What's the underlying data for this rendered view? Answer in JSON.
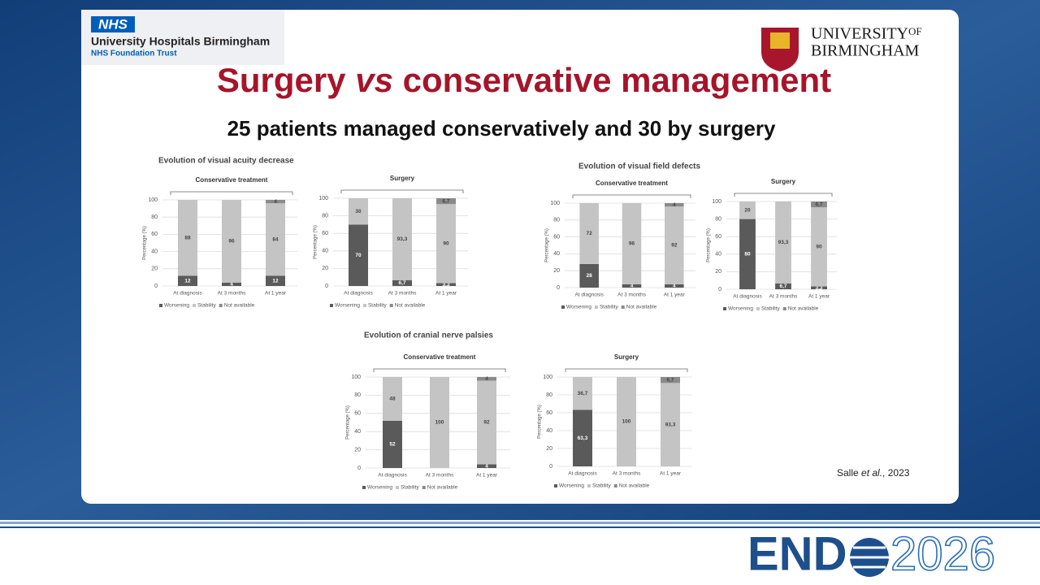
{
  "header": {
    "nhs": "NHS",
    "trust_name": "University Hospitals Birmingham",
    "trust_sub": "NHS Foundation Trust",
    "uni_line1": "UNIVERSITY",
    "uni_of": "OF",
    "uni_line2": "BIRMINGHAM"
  },
  "title": {
    "parts": [
      "Surgery ",
      "vs",
      " conservative management"
    ]
  },
  "subtitle": "25 patients managed conservatively and 30 by surgery",
  "sections": [
    "Evolution of visual acuity decrease",
    "Evolution of visual field defects",
    "Evolution of cranial nerve palsies"
  ],
  "citation": {
    "parts": [
      "Salle ",
      "et al.",
      ", 2023"
    ]
  },
  "footer": {
    "brand_left": "END",
    "brand_right": "2026"
  },
  "chart_data": [
    {
      "type": "stacked_bar",
      "title": "Conservative treatment",
      "ylabel": "Percentage (%)",
      "categories": [
        "At diagnosis",
        "At 3 months",
        "At 1 year"
      ],
      "ylim": [
        0,
        100
      ],
      "yticks": [
        0,
        20,
        40,
        60,
        80,
        100
      ],
      "grid": true,
      "series": [
        {
          "name": "Worsening",
          "color": "#5a5a5a",
          "values": [
            12,
            4,
            12
          ]
        },
        {
          "name": "Stability",
          "color": "#c4c4c4",
          "values": [
            88,
            96,
            84
          ]
        },
        {
          "name": "Not available",
          "color": "#8a8a8a",
          "values": [
            0,
            0,
            4
          ]
        }
      ]
    },
    {
      "type": "stacked_bar",
      "title": "Surgery",
      "ylabel": "Percentage (%)",
      "categories": [
        "At diagnosis",
        "At 3 months",
        "At 1 year"
      ],
      "ylim": [
        0,
        100
      ],
      "yticks": [
        0,
        20,
        40,
        60,
        80,
        100
      ],
      "grid": true,
      "series": [
        {
          "name": "Worsening",
          "color": "#5a5a5a",
          "values": [
            70,
            6.7,
            3.3
          ],
          "value_labels": [
            "70",
            "6,7",
            "3,3"
          ]
        },
        {
          "name": "Stability",
          "color": "#c4c4c4",
          "values": [
            30,
            93.3,
            90
          ],
          "value_labels": [
            "30",
            "93,3",
            "90"
          ]
        },
        {
          "name": "Not available",
          "color": "#8a8a8a",
          "values": [
            0,
            0,
            6.7
          ],
          "value_labels": [
            null,
            null,
            "6,7"
          ]
        }
      ]
    },
    {
      "type": "stacked_bar",
      "title": "Conservative treatment",
      "ylabel": "Percentage (%)",
      "categories": [
        "At diagnosis",
        "At 3 months",
        "At 1 year"
      ],
      "ylim": [
        0,
        100
      ],
      "yticks": [
        0,
        20,
        40,
        60,
        80,
        100
      ],
      "grid": true,
      "series": [
        {
          "name": "Worsening",
          "color": "#5a5a5a",
          "values": [
            28,
            4,
            4
          ]
        },
        {
          "name": "Stability",
          "color": "#c4c4c4",
          "values": [
            72,
            96,
            92
          ]
        },
        {
          "name": "Not available",
          "color": "#8a8a8a",
          "values": [
            0,
            0,
            4
          ]
        }
      ]
    },
    {
      "type": "stacked_bar",
      "title": "Surgery",
      "ylabel": "Percentage (%)",
      "categories": [
        "At diagnosis",
        "At 3 months",
        "At 1 year"
      ],
      "ylim": [
        0,
        100
      ],
      "yticks": [
        0,
        20,
        40,
        60,
        80,
        100
      ],
      "grid": true,
      "series": [
        {
          "name": "Worsening",
          "color": "#5a5a5a",
          "values": [
            80,
            6.7,
            3.3
          ],
          "value_labels": [
            "80",
            "6,7",
            "3,3"
          ]
        },
        {
          "name": "Stability",
          "color": "#c4c4c4",
          "values": [
            20,
            93.3,
            90
          ],
          "value_labels": [
            "20",
            "93,3",
            "90"
          ]
        },
        {
          "name": "Not available",
          "color": "#8a8a8a",
          "values": [
            0,
            0,
            6.7
          ],
          "value_labels": [
            null,
            null,
            "6,7"
          ]
        }
      ]
    },
    {
      "type": "stacked_bar",
      "title": "Conservative treatment",
      "ylabel": "Percentage (%)",
      "categories": [
        "At diagnosis",
        "At 3 months",
        "At 1 year"
      ],
      "ylim": [
        0,
        100
      ],
      "yticks": [
        0,
        20,
        40,
        60,
        80,
        100
      ],
      "grid": true,
      "series": [
        {
          "name": "Worsening",
          "color": "#5a5a5a",
          "values": [
            52,
            0,
            4
          ]
        },
        {
          "name": "Stability",
          "color": "#c4c4c4",
          "values": [
            48,
            100,
            92
          ]
        },
        {
          "name": "Not available",
          "color": "#8a8a8a",
          "values": [
            0,
            0,
            4
          ]
        }
      ]
    },
    {
      "type": "stacked_bar",
      "title": "Surgery",
      "ylabel": "Percentage (%)",
      "categories": [
        "At diagnosis",
        "At 3 months",
        "At 1 year"
      ],
      "ylim": [
        0,
        100
      ],
      "yticks": [
        0,
        20,
        40,
        60,
        80,
        100
      ],
      "grid": true,
      "series": [
        {
          "name": "Worsening",
          "color": "#5a5a5a",
          "values": [
            63.3,
            0,
            0
          ],
          "value_labels": [
            "63,3",
            null,
            null
          ]
        },
        {
          "name": "Stability",
          "color": "#c4c4c4",
          "values": [
            36.7,
            100,
            93.3
          ],
          "value_labels": [
            "36,7",
            "100",
            "93,3"
          ]
        },
        {
          "name": "Not available",
          "color": "#8a8a8a",
          "values": [
            0,
            0,
            6.7
          ],
          "value_labels": [
            null,
            null,
            "6,7"
          ]
        }
      ]
    }
  ]
}
